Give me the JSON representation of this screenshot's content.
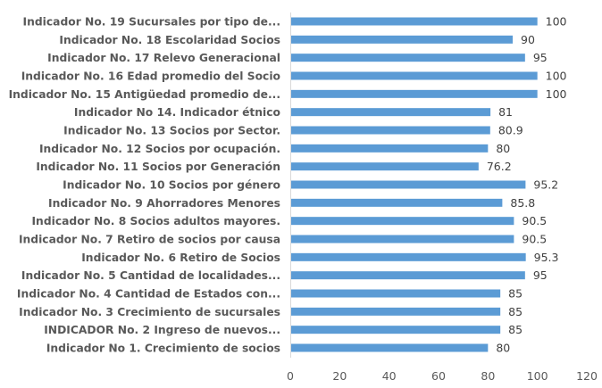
{
  "chart_data": {
    "type": "bar",
    "orientation": "horizontal",
    "title": "",
    "xlabel": "",
    "ylabel": "",
    "xlim": [
      0,
      120
    ],
    "xticks": [
      0,
      20,
      40,
      60,
      80,
      100,
      120
    ],
    "grid": false,
    "bar_color": "#5B9BD5",
    "categories": [
      "Indicador No 1. Crecimiento de socios",
      "INDICADOR No. 2  Ingreso de nuevos...",
      "Indicador No. 3 Crecimiento de sucursales",
      "Indicador No. 4 Cantidad de Estados con...",
      "Indicador No. 5 Cantidad de localidades...",
      "Indicador No. 6 Retiro de Socios",
      "Indicador No. 7 Retiro de socios por causa",
      "Indicador No. 8 Socios adultos mayores.",
      "Indicador No. 9 Ahorradores Menores",
      "Indicador No. 10  Socios por género",
      "Indicador No. 11 Socios por Generación",
      "Indicador No. 12 Socios por ocupación.",
      "Indicador No. 13 Socios por Sector.",
      "Indicador No 14. Indicador étnico",
      "Indicador No. 15 Antigüedad promedio de...",
      "Indicador No. 16 Edad promedio del Socio",
      "Indicador No. 17 Relevo Generacional",
      "Indicador No. 18 Escolaridad Socios",
      "Indicador No. 19 Sucursales por tipo de..."
    ],
    "values": [
      80,
      85,
      85,
      85,
      95,
      95.3,
      90.5,
      90.5,
      85.8,
      95.2,
      76.2,
      80,
      80.9,
      81,
      100,
      100,
      95,
      90,
      100
    ]
  }
}
